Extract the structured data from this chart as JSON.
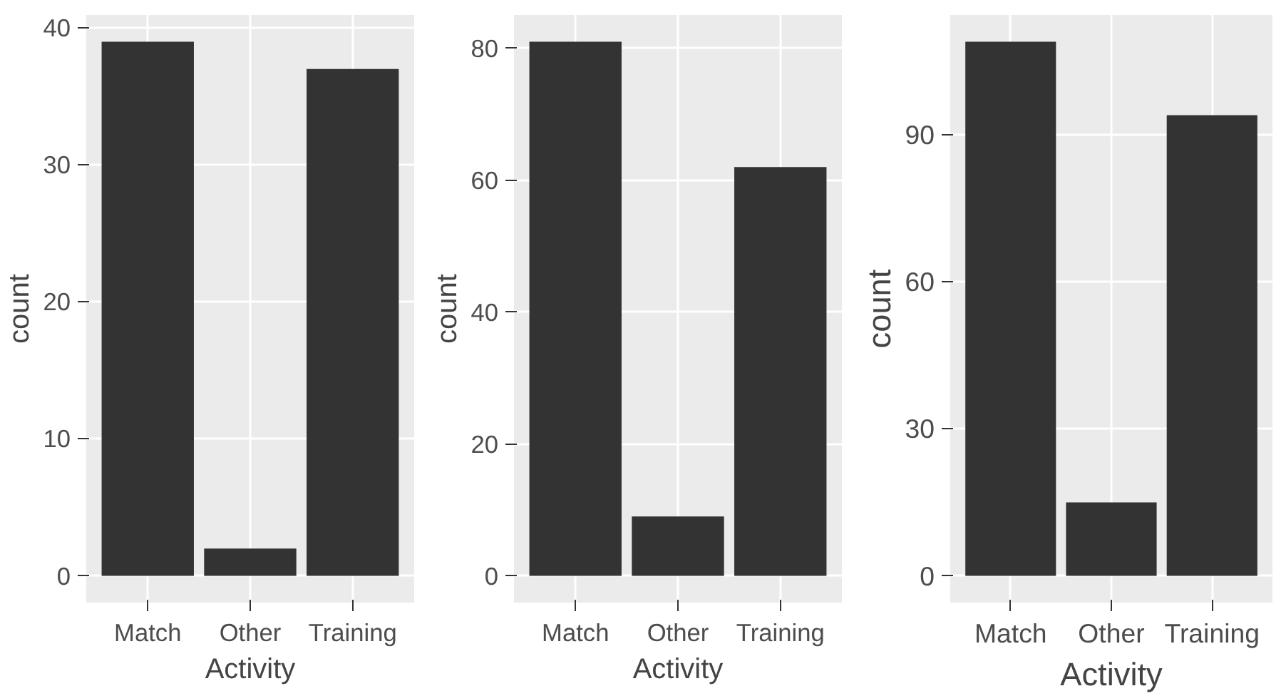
{
  "chart_data": [
    {
      "type": "bar",
      "categories": [
        "Match",
        "Other",
        "Training"
      ],
      "values": [
        39,
        2,
        37
      ],
      "color": "#333333",
      "xlabel": "Activity",
      "ylabel": "count",
      "ylim": [
        -1.95,
        40.95
      ],
      "yticks": [
        0,
        10,
        20,
        30,
        40
      ],
      "grid": true
    },
    {
      "type": "bar",
      "categories": [
        "Match",
        "Other",
        "Training"
      ],
      "values": [
        81,
        9,
        62
      ],
      "color": "#333333",
      "xlabel": "Activity",
      "ylabel": "count",
      "ylim": [
        -4.05,
        85.05
      ],
      "yticks": [
        0,
        20,
        40,
        60,
        80
      ],
      "grid": true
    },
    {
      "type": "bar",
      "categories": [
        "Match",
        "Other",
        "Training"
      ],
      "values": [
        109,
        15,
        94
      ],
      "color": "#333333",
      "xlabel": "Activity",
      "ylabel": "count",
      "ylim": [
        -5.45,
        114.45
      ],
      "yticks": [
        0,
        30,
        60,
        90
      ],
      "grid": true
    }
  ]
}
